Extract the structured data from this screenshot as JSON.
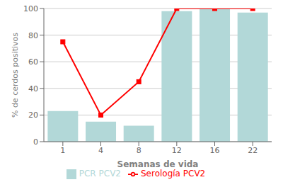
{
  "chart_data": {
    "type": "bar",
    "xlabel": "Semanas de vida",
    "ylabel": "% de cerdos positivos",
    "categories": [
      "1",
      "4",
      "8",
      "12",
      "16",
      "22"
    ],
    "series": [
      {
        "name": "PCR PCV2",
        "type": "bar",
        "color": "#b2d8d8",
        "values": [
          23,
          15,
          12,
          98,
          100,
          97
        ]
      },
      {
        "name": "Serología PCV2",
        "type": "line",
        "color": "#ff0000",
        "marker": "square",
        "values": [
          75,
          20,
          45,
          100,
          100,
          100
        ]
      }
    ],
    "ylim": [
      0,
      100
    ],
    "yticks": [
      0,
      20,
      40,
      60,
      80,
      100
    ],
    "grid": true,
    "legend": "bottom"
  }
}
